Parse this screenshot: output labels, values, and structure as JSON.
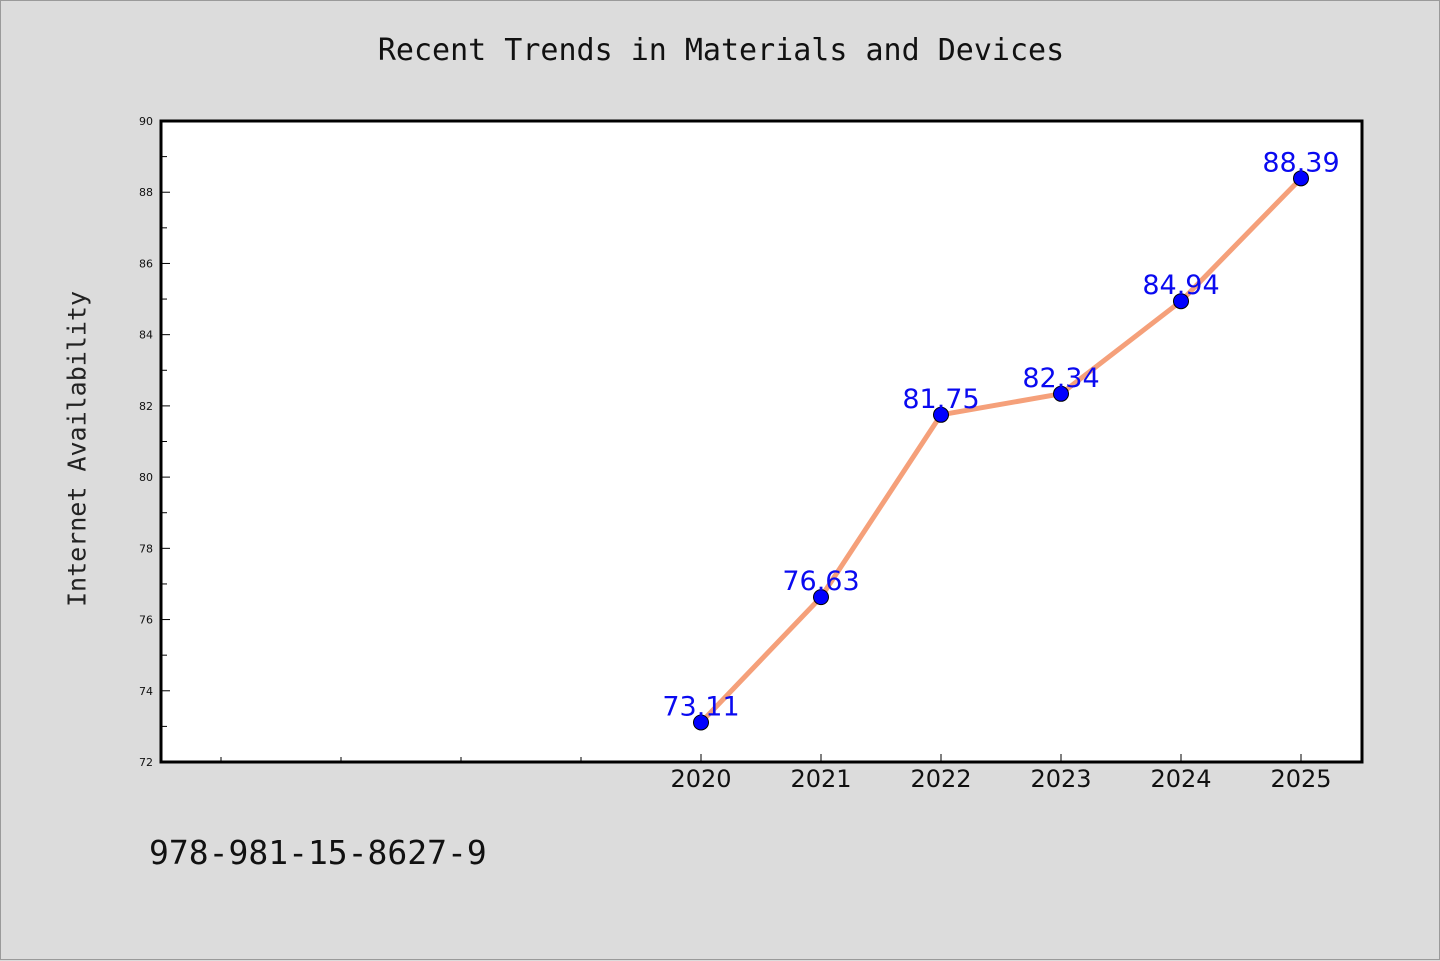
{
  "chart_data": {
    "type": "line",
    "title": "Recent Trends in Materials and Devices",
    "xlabel": "",
    "ylabel": "Internet Availability",
    "x": [
      "2020",
      "2021",
      "2022",
      "2023",
      "2024",
      "2025"
    ],
    "series": [
      {
        "values": [
          73.11,
          76.63,
          81.75,
          82.34,
          84.94,
          88.39
        ],
        "data_labels": [
          "73.11",
          "76.63",
          "81.75",
          "82.34",
          "84.94",
          "88.39"
        ],
        "line_color": "#f5a07a",
        "marker_color": "#0000ff"
      }
    ],
    "ylim": [
      72,
      90
    ],
    "yticks": [
      72,
      74,
      76,
      78,
      80,
      82,
      84,
      86,
      88,
      90
    ],
    "grid": false,
    "legend": "none"
  },
  "footer": {
    "code": "978-981-15-8627-9"
  },
  "colors": {
    "background": "#dcdcdc",
    "plot_area": "#ffffff",
    "label_text": "#0a0af0"
  }
}
